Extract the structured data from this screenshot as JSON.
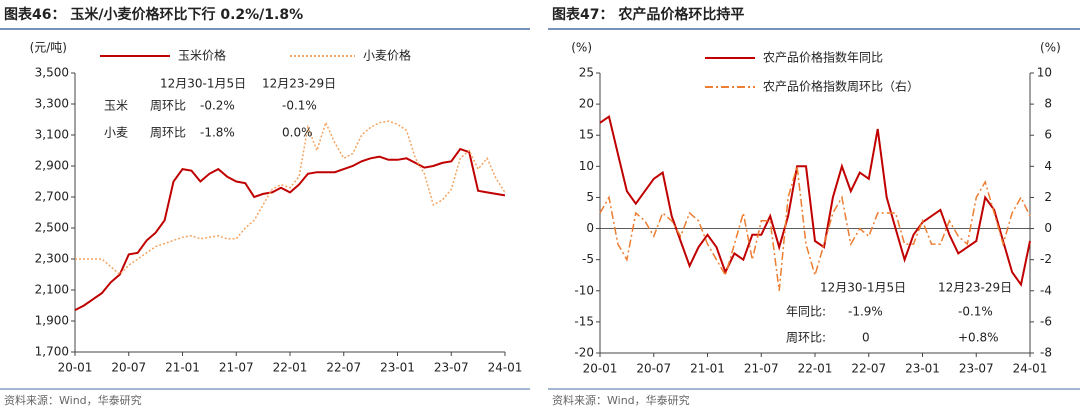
{
  "chart_data": [
    {
      "type": "line",
      "title": "图表46： 玉米/小麦价格环比下行 0.2%/1.8%",
      "y_label": "(元/吨)",
      "categories": [
        "20-01",
        null,
        null,
        null,
        null,
        null,
        "20-07",
        null,
        null,
        null,
        null,
        null,
        "21-01",
        null,
        null,
        null,
        null,
        null,
        "21-07",
        null,
        null,
        null,
        null,
        null,
        "22-01",
        null,
        null,
        null,
        null,
        null,
        "22-07",
        null,
        null,
        null,
        null,
        null,
        "23-01",
        null,
        null,
        null,
        null,
        null,
        "23-07",
        null,
        null,
        null,
        null,
        null,
        "24-01"
      ],
      "ylim": [
        1700,
        3500
      ],
      "yticks": [
        {
          "value": 1700,
          "label": "1,700"
        },
        {
          "value": 1900,
          "label": "1,900"
        },
        {
          "value": 2100,
          "label": "2,100"
        },
        {
          "value": 2300,
          "label": "2,300"
        },
        {
          "value": 2500,
          "label": "2,500"
        },
        {
          "value": 2700,
          "label": "2,700"
        },
        {
          "value": 2900,
          "label": "2,900"
        },
        {
          "value": 3100,
          "label": "3,100"
        },
        {
          "value": 3300,
          "label": "3,300"
        },
        {
          "value": 3500,
          "label": "3,500"
        }
      ],
      "series": [
        {
          "name": "玉米价格",
          "color": "#c00000",
          "line_style": "solid",
          "values": [
            1970,
            2000,
            2040,
            2080,
            2150,
            2200,
            2330,
            2340,
            2420,
            2470,
            2550,
            2800,
            2880,
            2870,
            2800,
            2850,
            2880,
            2830,
            2800,
            2790,
            2700,
            2720,
            2730,
            2760,
            2730,
            2780,
            2850,
            2860,
            2860,
            2860,
            2880,
            2900,
            2930,
            2950,
            2960,
            2940,
            2940,
            2950,
            2920,
            2890,
            2900,
            2920,
            2930,
            3010,
            2990,
            2740,
            2730,
            2720,
            2710
          ]
        },
        {
          "name": "小麦价格",
          "color": "#f4a460",
          "line_style": "dotted",
          "values": [
            2300,
            2300,
            2300,
            2300,
            2250,
            2200,
            2260,
            2300,
            2340,
            2380,
            2400,
            2420,
            2440,
            2450,
            2430,
            2440,
            2450,
            2430,
            2430,
            2500,
            2550,
            2650,
            2750,
            2780,
            2760,
            2830,
            3150,
            3000,
            3180,
            3050,
            2950,
            2980,
            3100,
            3150,
            3180,
            3190,
            3170,
            3130,
            2950,
            2850,
            2650,
            2680,
            2750,
            2950,
            3000,
            2880,
            2950,
            2820,
            2730
          ]
        }
      ],
      "annotations": [
        "12月30-1月5日",
        "12月23-29日",
        "玉米",
        "周环比",
        "-0.2%",
        "-0.1%",
        "小麦",
        "周环比",
        "-1.8%",
        "0.0%"
      ],
      "source": "资料来源：Wind，华泰研究"
    },
    {
      "type": "line",
      "title": "图表47： 农产品价格环比持平",
      "y_label": "(%)",
      "y2_label": "(%)",
      "categories": [
        "20-01",
        null,
        null,
        null,
        null,
        null,
        "20-07",
        null,
        null,
        null,
        null,
        null,
        "21-01",
        null,
        null,
        null,
        null,
        null,
        "21-07",
        null,
        null,
        null,
        null,
        null,
        "22-01",
        null,
        null,
        null,
        null,
        null,
        "22-07",
        null,
        null,
        null,
        null,
        null,
        "23-01",
        null,
        null,
        null,
        null,
        null,
        "23-07",
        null,
        null,
        null,
        null,
        null,
        "24-01"
      ],
      "ylim": [
        -20,
        25
      ],
      "yticks": [
        -20,
        -15,
        -10,
        -5,
        0,
        5,
        10,
        15,
        20,
        25
      ],
      "y2lim": [
        -8,
        10
      ],
      "y2ticks": [
        -8,
        -6,
        -4,
        -2,
        0,
        2,
        4,
        6,
        8,
        10
      ],
      "series": [
        {
          "name": "农产品价格指数年同比",
          "color": "#c00000",
          "line_style": "solid",
          "values": [
            17,
            18,
            12,
            6,
            4,
            6,
            8,
            9,
            2,
            -2,
            -6,
            -3,
            -1,
            -3,
            -7,
            -4,
            -5,
            -1,
            -1,
            2,
            -3,
            2,
            10,
            10,
            -2,
            -3,
            5,
            10,
            6,
            9,
            8,
            16,
            5,
            0,
            -5,
            -1,
            1,
            2,
            3,
            -1,
            -4,
            -3,
            -2,
            5,
            3,
            -2,
            -7,
            -9,
            -2
          ]
        },
        {
          "name": "农产品价格指数周环比（右）",
          "color": "#ed7d31",
          "line_style": "dashdot",
          "axis": "y2",
          "values": [
            1,
            2,
            -1,
            -2,
            1,
            0.5,
            -0.5,
            1,
            0.5,
            -0.5,
            1,
            0.5,
            -1,
            -2,
            -3,
            -1,
            1,
            -2,
            0.5,
            0.5,
            -4,
            2,
            4,
            -1,
            -3,
            -1,
            1,
            2,
            -1,
            0,
            -0.5,
            1,
            1,
            1,
            -1,
            -1,
            0.5,
            -1,
            -1,
            0.5,
            -0.5,
            -1,
            2,
            3,
            1,
            -1,
            1,
            2,
            0.8
          ]
        }
      ],
      "annotations": [
        "12月30-1月5日",
        "12月23-29日",
        "年同比:",
        "-1.9%",
        "-0.1%",
        "周环比:",
        "0",
        "+0.8%"
      ],
      "source": "资料来源：Wind，华泰研究"
    }
  ]
}
